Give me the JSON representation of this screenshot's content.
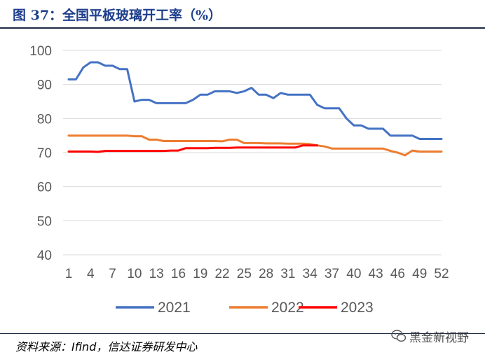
{
  "title": "图 37：全国平板玻璃开工率（%）",
  "source": "资料来源：Ifind，信达证券研发中心",
  "watermark": "黑金新视野",
  "chart_data": {
    "type": "line",
    "title": "",
    "xlabel": "",
    "ylabel": "",
    "ylim": [
      40,
      100
    ],
    "yticks": [
      40,
      50,
      60,
      70,
      80,
      90,
      100
    ],
    "xlim": [
      1,
      52
    ],
    "xticks": [
      1,
      4,
      7,
      10,
      13,
      16,
      19,
      22,
      25,
      28,
      31,
      34,
      37,
      40,
      43,
      46,
      49,
      52
    ],
    "grid": true,
    "legend": "bottom",
    "series": [
      {
        "name": "2021",
        "color": "#4472c4",
        "x": [
          1,
          2,
          3,
          4,
          5,
          6,
          7,
          8,
          9,
          10,
          11,
          12,
          13,
          14,
          15,
          16,
          17,
          18,
          19,
          20,
          21,
          22,
          23,
          24,
          25,
          26,
          27,
          28,
          29,
          30,
          31,
          32,
          33,
          34,
          35,
          36,
          37,
          38,
          39,
          40,
          41,
          42,
          43,
          44,
          45,
          46,
          47,
          48,
          49,
          50,
          51,
          52
        ],
        "values": [
          91.5,
          91.5,
          95,
          96.5,
          96.5,
          95.5,
          95.5,
          94.5,
          94.5,
          85,
          85.5,
          85.5,
          84.5,
          84.5,
          84.5,
          84.5,
          84.5,
          85.5,
          87,
          87,
          88,
          88,
          88,
          87.5,
          88,
          89,
          87,
          87,
          86,
          87.5,
          87,
          87,
          87,
          87,
          84,
          83,
          83,
          83,
          80,
          78,
          78,
          77,
          77,
          77,
          75,
          75,
          75,
          75,
          74,
          74,
          74,
          74
        ]
      },
      {
        "name": "2022",
        "color": "#ed7d31",
        "x": [
          1,
          2,
          3,
          4,
          5,
          6,
          7,
          8,
          9,
          10,
          11,
          12,
          13,
          14,
          15,
          16,
          17,
          18,
          19,
          20,
          21,
          22,
          23,
          24,
          25,
          26,
          27,
          28,
          29,
          30,
          31,
          32,
          33,
          34,
          35,
          36,
          37,
          38,
          39,
          40,
          41,
          42,
          43,
          44,
          45,
          46,
          47,
          48,
          49,
          50,
          51,
          52
        ],
        "values": [
          75,
          75,
          75,
          75,
          75,
          75,
          75,
          75,
          75,
          74.8,
          74.8,
          73.8,
          73.8,
          73.4,
          73.4,
          73.4,
          73.4,
          73.4,
          73.4,
          73.4,
          73.4,
          73.3,
          73.8,
          73.8,
          72.8,
          72.8,
          72.8,
          72.7,
          72.7,
          72.7,
          72.6,
          72.6,
          72.6,
          72.5,
          72.1,
          71.8,
          71.2,
          71.2,
          71.2,
          71.2,
          71.2,
          71.2,
          71.2,
          71.2,
          70.5,
          70,
          69.2,
          70.6,
          70.3,
          70.3,
          70.3,
          70.3
        ]
      },
      {
        "name": "2023",
        "color": "#ff0000",
        "x": [
          1,
          2,
          3,
          4,
          5,
          6,
          7,
          8,
          9,
          10,
          11,
          12,
          13,
          14,
          15,
          16,
          17,
          18,
          19,
          20,
          21,
          22,
          23,
          24,
          25,
          26,
          27,
          28,
          29,
          30,
          31,
          32,
          33,
          34,
          35
        ],
        "values": [
          70.3,
          70.3,
          70.3,
          70.3,
          70.2,
          70.5,
          70.5,
          70.5,
          70.5,
          70.5,
          70.5,
          70.5,
          70.5,
          70.5,
          70.6,
          70.6,
          71.3,
          71.3,
          71.3,
          71.3,
          71.4,
          71.4,
          71.4,
          71.5,
          71.5,
          71.5,
          71.5,
          71.5,
          71.5,
          71.5,
          71.5,
          71.5,
          72.1,
          72.1,
          72.1
        ]
      }
    ]
  }
}
